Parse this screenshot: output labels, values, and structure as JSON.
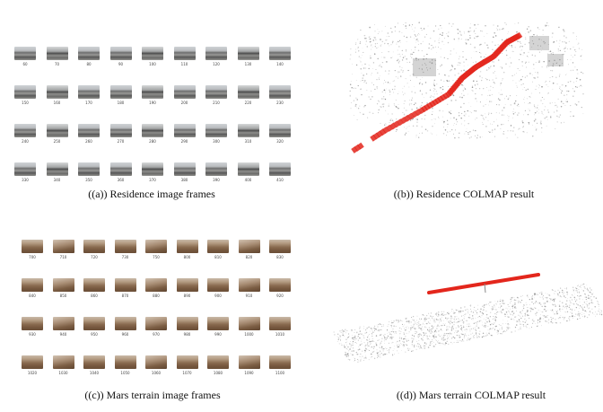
{
  "panels": {
    "a": {
      "caption": "((a)) Residence image frames",
      "frame_labels": [
        "60",
        "70",
        "80",
        "90",
        "100",
        "110",
        "120",
        "130",
        "140",
        "150",
        "160",
        "170",
        "180",
        "190",
        "200",
        "210",
        "220",
        "230",
        "240",
        "250",
        "260",
        "270",
        "280",
        "290",
        "300",
        "310",
        "320",
        "330",
        "340",
        "350",
        "360",
        "370",
        "380",
        "390",
        "400",
        "410"
      ]
    },
    "b": {
      "caption": "((b)) Residence COLMAP result"
    },
    "c": {
      "caption": "((c)) Mars terrain image frames",
      "frame_labels": [
        "700",
        "710",
        "720",
        "730",
        "750",
        "800",
        "810",
        "820",
        "830",
        "840",
        "850",
        "860",
        "870",
        "880",
        "890",
        "900",
        "910",
        "920",
        "930",
        "940",
        "950",
        "960",
        "970",
        "980",
        "990",
        "1000",
        "1010",
        "1020",
        "1030",
        "1040",
        "1050",
        "1060",
        "1070",
        "1080",
        "1090",
        "1100"
      ]
    },
    "d": {
      "caption": "((d)) Mars terrain COLMAP result"
    }
  },
  "colors": {
    "camera_path": "#e3261c",
    "point_cloud": "#8a8a8a"
  }
}
